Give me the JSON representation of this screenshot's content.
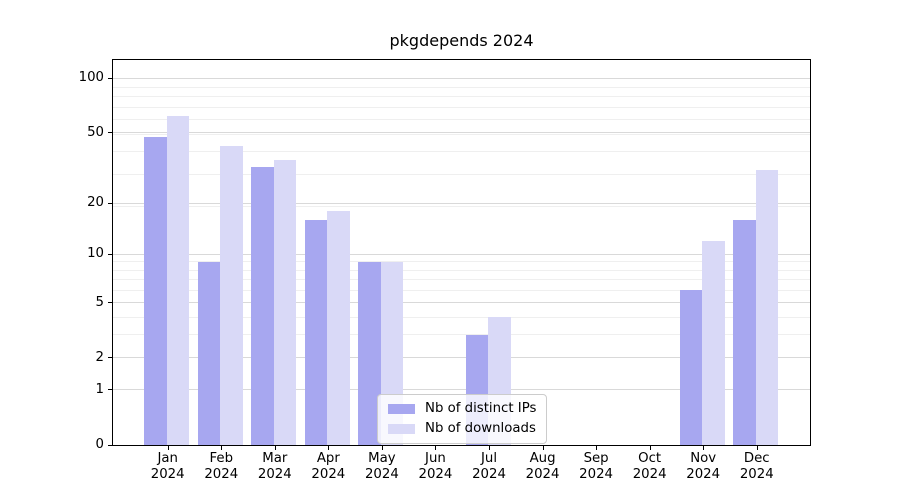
{
  "chart_data": {
    "type": "bar",
    "title": "pkgdepends 2024",
    "categories": [
      {
        "month": "Jan",
        "year": "2024"
      },
      {
        "month": "Feb",
        "year": "2024"
      },
      {
        "month": "Mar",
        "year": "2024"
      },
      {
        "month": "Apr",
        "year": "2024"
      },
      {
        "month": "May",
        "year": "2024"
      },
      {
        "month": "Jun",
        "year": "2024"
      },
      {
        "month": "Jul",
        "year": "2024"
      },
      {
        "month": "Aug",
        "year": "2024"
      },
      {
        "month": "Sep",
        "year": "2024"
      },
      {
        "month": "Oct",
        "year": "2024"
      },
      {
        "month": "Nov",
        "year": "2024"
      },
      {
        "month": "Dec",
        "year": "2024"
      }
    ],
    "series": [
      {
        "name": "Nb of distinct IPs",
        "color": "#a7a7f0",
        "values": [
          47,
          9,
          32,
          16,
          9,
          0,
          3,
          0,
          0,
          0,
          6,
          16
        ]
      },
      {
        "name": "Nb of downloads",
        "color": "#d9d9f7",
        "values": [
          62,
          42,
          35,
          18,
          9,
          0,
          4,
          0,
          0,
          0,
          12,
          31
        ]
      }
    ],
    "xlabel": "",
    "ylabel": "",
    "yscale": "log1p",
    "ylim": [
      0,
      126
    ],
    "yticks": [
      0,
      1,
      2,
      5,
      10,
      20,
      50,
      100
    ],
    "y_minor_values": [
      2,
      3,
      4,
      5,
      6,
      7,
      8,
      9,
      19,
      29,
      39,
      49,
      59,
      69,
      79,
      89
    ],
    "grid": true,
    "legend_position": "lower center",
    "colors": {
      "background": "#ffffff",
      "axis": "#000000",
      "major_grid": "#d9d9d9",
      "minor_grid": "#efefef",
      "legend_border": "#cccccc"
    }
  }
}
